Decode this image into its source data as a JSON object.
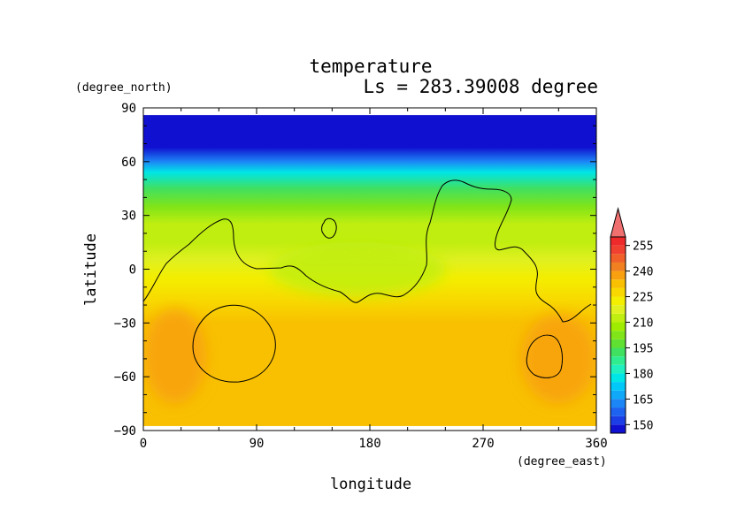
{
  "chart_data": {
    "type": "heatmap",
    "title": "temperature",
    "subtitle": "Ls = 283.39008 degree",
    "xlabel": "longitude",
    "ylabel": "latitude",
    "xunit": "(degree_east)",
    "yunit": "(degree_north)",
    "xlim": [
      0,
      360
    ],
    "ylim": [
      -90,
      90
    ],
    "x_ticks": [
      "0",
      "90",
      "180",
      "270",
      "360"
    ],
    "y_ticks": [
      "90",
      "60",
      "30",
      "0",
      "−30",
      "−60",
      "−90"
    ],
    "data_lat_range": [
      -87.5,
      86
    ],
    "colorbar": {
      "levels": [
        145,
        150,
        155,
        160,
        165,
        170,
        175,
        180,
        185,
        190,
        195,
        200,
        205,
        210,
        215,
        220,
        225,
        230,
        235,
        240,
        245,
        250,
        255,
        260
      ],
      "colors": [
        "#1010d0",
        "#1c3ee6",
        "#1e62f0",
        "#1c86f6",
        "#10a8f8",
        "#00c8f8",
        "#00e6e6",
        "#20f0c0",
        "#30ec90",
        "#40e060",
        "#60e030",
        "#80e418",
        "#a0ec00",
        "#c0ee10",
        "#e0f020",
        "#f4ee00",
        "#f8d800",
        "#f8c000",
        "#f8a010",
        "#f08020",
        "#f06028",
        "#f04030",
        "#ee2a2a"
      ],
      "labels": [
        "150",
        "165",
        "180",
        "195",
        "210",
        "225",
        "240",
        "255"
      ],
      "extend": "max",
      "extend_color": "#f07070"
    },
    "temperature_profile": [
      {
        "lat": 86,
        "temp": 145
      },
      {
        "lat": 68,
        "temp": 147
      },
      {
        "lat": 60,
        "temp": 164
      },
      {
        "lat": 54,
        "temp": 178
      },
      {
        "lat": 45,
        "temp": 192
      },
      {
        "lat": 35,
        "temp": 202
      },
      {
        "lat": 25,
        "temp": 210
      },
      {
        "lat": 15,
        "temp": 214
      },
      {
        "lat": 5,
        "temp": 216
      },
      {
        "lat": -5,
        "temp": 220
      },
      {
        "lat": -18,
        "temp": 226
      },
      {
        "lat": -30,
        "temp": 230
      },
      {
        "lat": -45,
        "temp": 232
      },
      {
        "lat": -60,
        "temp": 233
      },
      {
        "lat": -75,
        "temp": 234
      },
      {
        "lat": -87.5,
        "temp": 234
      }
    ],
    "features": [
      {
        "name": "warm-region-west",
        "temp": 238,
        "lon": [
          0,
          50
        ],
        "lat": [
          -75,
          -22
        ]
      },
      {
        "name": "warm-region-east",
        "temp": 238,
        "lon": [
          300,
          360
        ],
        "lat": [
          -75,
          -25
        ]
      },
      {
        "name": "greener-band-center",
        "temp": 212,
        "lon": [
          100,
          240
        ],
        "lat": [
          -15,
          15
        ]
      }
    ],
    "grid": false,
    "legend_position": "right"
  }
}
